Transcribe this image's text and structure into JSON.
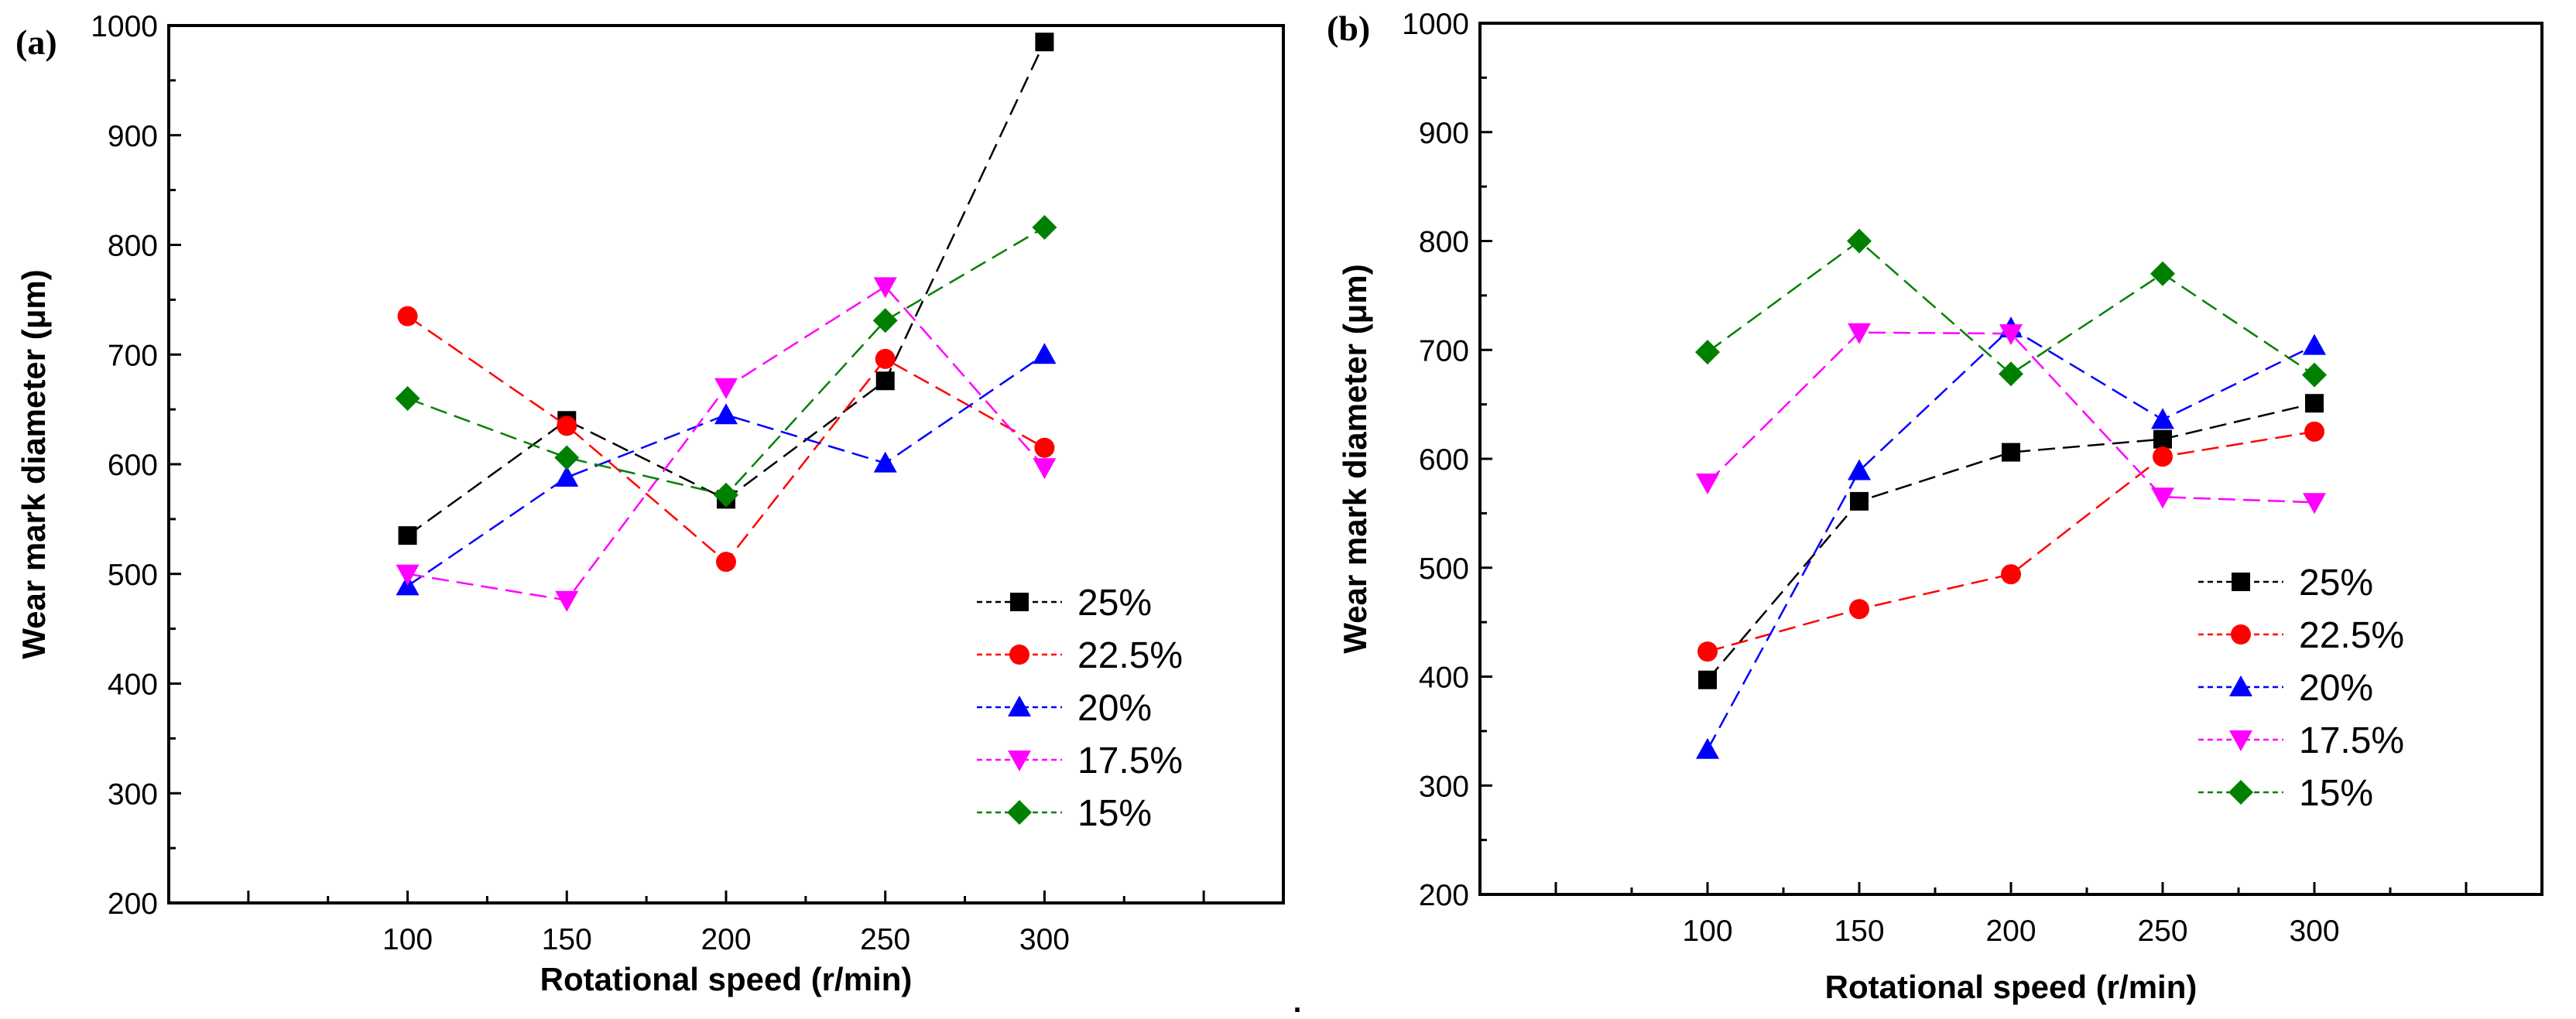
{
  "figure": {
    "separator": "."
  },
  "colors": {
    "25%": "#000000",
    "22.5%": "#ff0000",
    "20%": "#0000ff",
    "17.5%": "#ff00ff",
    "15%": "#008000"
  },
  "markers": {
    "25%": "square",
    "22.5%": "circle",
    "20%": "triangle-up",
    "17.5%": "triangle-down",
    "15%": "diamond"
  },
  "chart_data": [
    {
      "type": "line",
      "panel_label": "(a)",
      "xlabel": "Rotational speed (r/min)",
      "ylabel": "Wear mark diameter  (μm)",
      "x": [
        100,
        150,
        200,
        250,
        300
      ],
      "xticks": [
        "100",
        "150",
        "200",
        "250",
        "300"
      ],
      "xlim": [
        25,
        375
      ],
      "ylim": [
        200,
        1000
      ],
      "yticks": [
        "200",
        "300",
        "400",
        "500",
        "600",
        "700",
        "800",
        "900",
        "1000"
      ],
      "legend_position": "bottom-right",
      "series": [
        {
          "name": "25%",
          "values": [
            535,
            640,
            568,
            676,
            985
          ]
        },
        {
          "name": "22.5%",
          "values": [
            735,
            635,
            511,
            696,
            615
          ]
        },
        {
          "name": "20%",
          "values": [
            489,
            588,
            645,
            601,
            700
          ]
        },
        {
          "name": "17.5%",
          "values": [
            500,
            476,
            670,
            762,
            597
          ]
        },
        {
          "name": "15%",
          "values": [
            660,
            606,
            572,
            731,
            816
          ]
        }
      ]
    },
    {
      "type": "line",
      "panel_label": "(b)",
      "xlabel": "Rotational speed (r/min)",
      "ylabel": "Wear mark diameter  (μm)",
      "x": [
        100,
        150,
        200,
        250,
        300
      ],
      "xticks": [
        "100",
        "150",
        "200",
        "250",
        "300"
      ],
      "xlim": [
        25,
        375
      ],
      "ylim": [
        200,
        1000
      ],
      "yticks": [
        "200",
        "300",
        "400",
        "500",
        "600",
        "700",
        "800",
        "900",
        "1000"
      ],
      "legend_position": "bottom-right",
      "series": [
        {
          "name": "25%",
          "values": [
            397,
            561,
            606,
            618,
            651
          ]
        },
        {
          "name": "22.5%",
          "values": [
            423,
            462,
            494,
            602,
            625
          ]
        },
        {
          "name": "20%",
          "values": [
            333,
            589,
            720,
            636,
            704
          ]
        },
        {
          "name": "17.5%",
          "values": [
            578,
            716,
            715,
            565,
            560
          ]
        },
        {
          "name": "15%",
          "values": [
            698,
            800,
            678,
            770,
            677
          ]
        }
      ]
    }
  ]
}
